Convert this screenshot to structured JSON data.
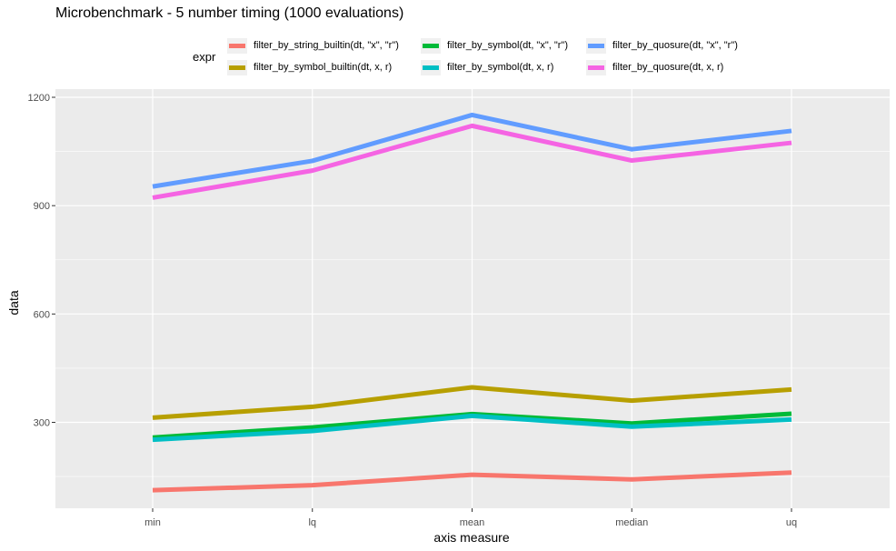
{
  "chart_data": {
    "type": "line",
    "title": "Microbenchmark - 5 number timing (1000 evaluations)",
    "xlabel": "axis measure",
    "ylabel": "data",
    "categories": [
      "min",
      "lq",
      "mean",
      "median",
      "uq"
    ],
    "ylim": [
      0,
      1200
    ],
    "yticks": [
      300,
      600,
      900,
      1200
    ],
    "legend_title": "expr",
    "legend_position": "top",
    "grid": true,
    "panel_background": "#ebebeb",
    "series": [
      {
        "name": "filter_by_string_builtin(dt, \"x\", \"r\")",
        "color": "#f8766d",
        "values": [
          112,
          126,
          155,
          142,
          161
        ]
      },
      {
        "name": "filter_by_symbol_builtin(dt, x, r)",
        "color": "#b79f00",
        "values": [
          313,
          343,
          397,
          360,
          391
        ]
      },
      {
        "name": "filter_by_symbol(dt, \"x\", \"r\")",
        "color": "#00ba38",
        "values": [
          258,
          286,
          323,
          297,
          324
        ]
      },
      {
        "name": "filter_by_symbol(dt, x, r)",
        "color": "#00bfc4",
        "values": [
          252,
          276,
          318,
          288,
          308
        ]
      },
      {
        "name": "filter_by_quosure(dt, \"x\", \"r\")",
        "color": "#619cff",
        "values": [
          953,
          1024,
          1151,
          1056,
          1107
        ]
      },
      {
        "name": "filter_by_quosure(dt, x, r)",
        "color": "#f564e3",
        "values": [
          922,
          997,
          1121,
          1025,
          1074
        ]
      }
    ]
  }
}
